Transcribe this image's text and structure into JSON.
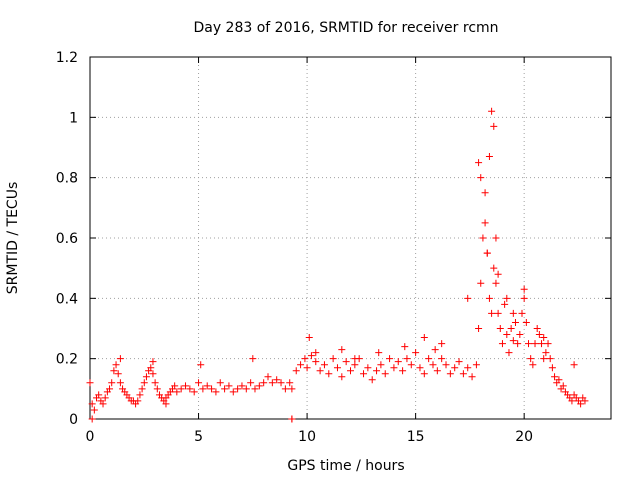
{
  "chart_data": {
    "type": "scatter",
    "title": "Day 283 of 2016, SRMTID for receiver rcmn",
    "xlabel": "GPS time / hours",
    "ylabel": "SRMTID / TECUs",
    "xlim": [
      0,
      24
    ],
    "ylim": [
      0,
      1.2
    ],
    "xticks": [
      0,
      5,
      10,
      15,
      20
    ],
    "yticks": [
      0,
      0.2,
      0.4,
      0.6,
      0.8,
      1,
      1.2
    ],
    "xtick_labels": [
      "0",
      "5",
      "10",
      "15",
      "20"
    ],
    "ytick_labels": [
      "0",
      "0.2",
      "0.4",
      "0.6",
      "0.8",
      "1",
      "1.2"
    ],
    "grid": true,
    "marker": "plus",
    "color": "#ff0000",
    "series": [
      {
        "name": "SRMTID",
        "x": [
          0.0,
          0.1,
          0.2,
          0.3,
          0.4,
          0.5,
          0.6,
          0.7,
          0.8,
          0.9,
          1.0,
          1.1,
          1.2,
          1.3,
          1.4,
          1.5,
          1.6,
          1.7,
          1.8,
          1.9,
          2.0,
          2.1,
          2.2,
          2.3,
          2.4,
          2.5,
          2.6,
          2.7,
          2.8,
          2.9,
          3.0,
          3.1,
          3.2,
          3.3,
          3.4,
          3.5,
          3.6,
          3.7,
          3.8,
          3.9,
          4.0,
          4.2,
          4.4,
          4.6,
          4.8,
          5.0,
          5.2,
          5.4,
          5.6,
          5.8,
          6.0,
          6.2,
          6.4,
          6.6,
          6.8,
          7.0,
          7.2,
          7.4,
          7.6,
          7.8,
          8.0,
          8.2,
          8.4,
          8.6,
          8.8,
          9.0,
          9.2,
          9.3,
          9.5,
          9.7,
          9.9,
          10.0,
          10.2,
          10.4,
          10.6,
          10.8,
          11.0,
          11.2,
          11.4,
          11.6,
          11.8,
          12.0,
          12.2,
          12.4,
          12.6,
          12.8,
          13.0,
          13.2,
          13.4,
          13.6,
          13.8,
          14.0,
          14.2,
          14.4,
          14.6,
          14.8,
          15.0,
          15.2,
          15.4,
          15.6,
          15.8,
          16.0,
          16.2,
          16.4,
          16.6,
          16.8,
          17.0,
          17.2,
          17.4,
          17.6,
          17.8,
          17.9,
          18.0,
          18.1,
          18.2,
          18.3,
          18.4,
          18.5,
          18.6,
          18.7,
          18.8,
          18.9,
          19.0,
          19.1,
          19.2,
          19.3,
          19.4,
          19.5,
          19.6,
          19.7,
          19.8,
          19.9,
          20.0,
          20.1,
          20.2,
          20.3,
          20.4,
          20.5,
          20.6,
          20.7,
          20.8,
          20.9,
          21.0,
          21.1,
          21.2,
          21.3,
          21.4,
          21.5,
          21.6,
          21.7,
          21.8,
          21.9,
          22.0,
          22.1,
          22.2,
          22.3,
          22.4,
          22.5,
          22.6,
          22.7,
          22.8,
          0.1,
          1.4,
          2.9,
          3.5,
          5.1,
          7.5,
          9.3,
          9.3,
          10.1,
          10.4,
          11.6,
          12.2,
          13.3,
          14.5,
          15.4,
          15.9,
          16.2,
          17.4,
          17.9,
          18.0,
          18.2,
          18.3,
          18.4,
          18.5,
          18.6,
          18.7,
          18.8,
          19.2,
          19.5,
          20.0,
          20.9,
          22.3
        ],
        "y": [
          0.12,
          0.05,
          0.03,
          0.07,
          0.08,
          0.06,
          0.05,
          0.07,
          0.09,
          0.1,
          0.12,
          0.16,
          0.18,
          0.15,
          0.12,
          0.1,
          0.09,
          0.08,
          0.07,
          0.06,
          0.06,
          0.05,
          0.06,
          0.08,
          0.1,
          0.12,
          0.14,
          0.16,
          0.17,
          0.15,
          0.12,
          0.1,
          0.08,
          0.07,
          0.06,
          0.07,
          0.08,
          0.09,
          0.1,
          0.11,
          0.09,
          0.1,
          0.11,
          0.1,
          0.09,
          0.12,
          0.1,
          0.11,
          0.1,
          0.09,
          0.12,
          0.1,
          0.11,
          0.09,
          0.1,
          0.11,
          0.1,
          0.12,
          0.1,
          0.11,
          0.12,
          0.14,
          0.12,
          0.13,
          0.12,
          0.1,
          0.12,
          0.1,
          0.16,
          0.18,
          0.2,
          0.17,
          0.21,
          0.19,
          0.16,
          0.18,
          0.15,
          0.2,
          0.17,
          0.14,
          0.19,
          0.16,
          0.18,
          0.2,
          0.15,
          0.17,
          0.13,
          0.16,
          0.18,
          0.15,
          0.2,
          0.17,
          0.19,
          0.16,
          0.2,
          0.18,
          0.22,
          0.17,
          0.15,
          0.2,
          0.18,
          0.16,
          0.2,
          0.18,
          0.15,
          0.17,
          0.19,
          0.15,
          0.17,
          0.14,
          0.18,
          0.3,
          0.45,
          0.6,
          0.75,
          0.55,
          0.4,
          0.35,
          0.5,
          0.45,
          0.35,
          0.3,
          0.25,
          0.38,
          0.28,
          0.22,
          0.3,
          0.26,
          0.32,
          0.25,
          0.28,
          0.35,
          0.4,
          0.32,
          0.25,
          0.2,
          0.18,
          0.25,
          0.3,
          0.28,
          0.25,
          0.2,
          0.22,
          0.25,
          0.2,
          0.17,
          0.14,
          0.12,
          0.13,
          0.1,
          0.11,
          0.09,
          0.08,
          0.07,
          0.06,
          0.08,
          0.07,
          0.06,
          0.05,
          0.07,
          0.06,
          0.0,
          0.2,
          0.19,
          0.05,
          0.18,
          0.2,
          0.0,
          0.0,
          0.27,
          0.22,
          0.23,
          0.2,
          0.22,
          0.24,
          0.27,
          0.23,
          0.25,
          0.4,
          0.85,
          0.8,
          0.65,
          0.55,
          0.87,
          1.02,
          0.97,
          0.6,
          0.48,
          0.4,
          0.35,
          0.43,
          0.27,
          0.18
        ]
      }
    ]
  }
}
